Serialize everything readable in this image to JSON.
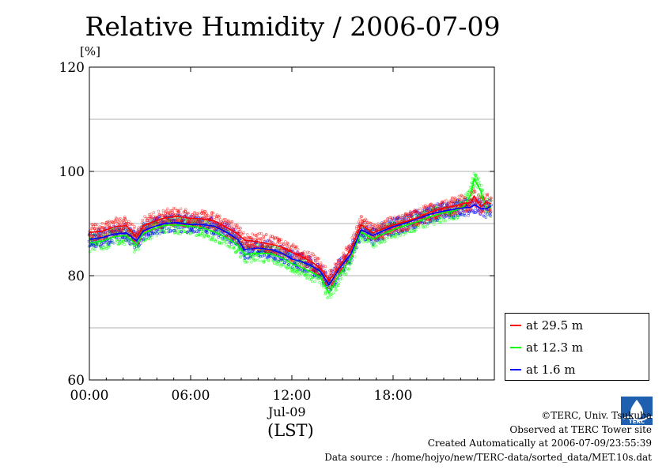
{
  "title": "Relative Humidity / 2006-07-09",
  "unit": "[%]",
  "date_label": "Jul-09",
  "tz_label": "(LST)",
  "legend": [
    {
      "label": "at 29.5 m",
      "color": "#ff0000"
    },
    {
      "label": "at 12.3 m",
      "color": "#00ff00"
    },
    {
      "label": "at 1.6 m",
      "color": "#0000ff"
    }
  ],
  "credits": [
    "©TERC, Univ. Tsukuba",
    "Observed at TERC Tower site",
    "Created Automatically at 2006-07-09/23:55:39",
    "Data source : /home/hojyo/new/TERC-data/sorted_data/MET.10s.dat"
  ],
  "logo_text": "TERC",
  "colors": {
    "red": "#ff0000",
    "green": "#00ff00",
    "blue": "#0000ff",
    "grid": "#b0b0b0"
  },
  "chart_data": {
    "type": "line",
    "title": "Relative Humidity / 2006-07-09",
    "xlabel": "(LST)",
    "ylabel": "[%]",
    "xlim": [
      0,
      24
    ],
    "ylim": [
      60,
      120
    ],
    "x_ticks": [
      {
        "x": 0,
        "label": "00:00"
      },
      {
        "x": 6,
        "label": "06:00"
      },
      {
        "x": 12,
        "label": "12:00"
      },
      {
        "x": 18,
        "label": "18:00"
      }
    ],
    "y_ticks": [
      {
        "y": 60,
        "label": "60"
      },
      {
        "y": 80,
        "label": "80"
      },
      {
        "y": 100,
        "label": "100"
      },
      {
        "y": 120,
        "label": "120"
      }
    ],
    "gridlines_y": [
      70,
      80,
      90,
      100,
      110
    ],
    "grid": true,
    "legend_position": "right-bottom",
    "series": [
      {
        "name": "at 29.5 m",
        "color": "#ff0000",
        "x": [
          0,
          0.75,
          1.5,
          2.2,
          2.8,
          3.2,
          3.8,
          4.5,
          5.2,
          6,
          6.7,
          7.4,
          8.1,
          8.8,
          9.2,
          10,
          10.8,
          11.5,
          12,
          12.5,
          13.2,
          13.7,
          14.2,
          14.8,
          15.5,
          16.1,
          16.8,
          17.4,
          18,
          18.8,
          19.5,
          20.2,
          21,
          21.7,
          22.2,
          22.6,
          22.8,
          23.2,
          23.5,
          23.8
        ],
        "y": [
          88.3,
          88.5,
          89.4,
          89.6,
          87.3,
          89.6,
          90.4,
          91.1,
          91.4,
          91.0,
          90.9,
          90.5,
          89.3,
          88.0,
          86.8,
          86.5,
          86.0,
          85.4,
          84.5,
          83.8,
          82.6,
          81.4,
          79.0,
          81.7,
          85.1,
          89.8,
          88.2,
          89.0,
          89.7,
          90.4,
          91.2,
          92.2,
          93.0,
          93.4,
          93.9,
          94.0,
          95.3,
          93.2,
          94.1,
          93.8
        ]
      },
      {
        "name": "at 12.3 m",
        "color": "#00ff00",
        "x": [
          0,
          0.75,
          1.5,
          2.2,
          2.8,
          3.2,
          3.8,
          4.5,
          5.2,
          6,
          6.7,
          7.4,
          8.1,
          8.8,
          9.2,
          10,
          10.8,
          11.5,
          12,
          12.5,
          13.2,
          13.7,
          14.2,
          14.8,
          15.5,
          16.1,
          16.8,
          17.4,
          18,
          18.8,
          19.5,
          20.2,
          21,
          21.7,
          22.2,
          22.6,
          22.8,
          23.2,
          23.5,
          23.8
        ],
        "y": [
          86.3,
          86.6,
          87.5,
          87.7,
          85.9,
          88.1,
          89.0,
          89.7,
          89.7,
          89.5,
          89.2,
          88.4,
          87.3,
          85.9,
          84.1,
          84.3,
          84.2,
          83.3,
          82.3,
          81.7,
          80.6,
          79.7,
          76.6,
          80.1,
          83.3,
          88.4,
          87.0,
          88.0,
          88.8,
          89.7,
          90.4,
          91.3,
          92.1,
          92.5,
          93.3,
          95.5,
          98.6,
          96.2,
          93.0,
          93.0
        ]
      },
      {
        "name": "at 1.6 m",
        "color": "#0000ff",
        "x": [
          0,
          0.75,
          1.5,
          2.2,
          2.8,
          3.2,
          3.8,
          4.5,
          5.2,
          6,
          6.7,
          7.4,
          8.1,
          8.8,
          9.2,
          10,
          10.8,
          11.5,
          12,
          12.5,
          13.2,
          13.7,
          14.2,
          14.8,
          15.5,
          16.1,
          16.8,
          17.4,
          18,
          18.8,
          19.5,
          20.2,
          21,
          21.7,
          22.2,
          22.6,
          22.8,
          23.2,
          23.5,
          23.8
        ],
        "y": [
          87.0,
          87.3,
          88.0,
          88.2,
          86.7,
          88.6,
          89.4,
          90.0,
          90.2,
          89.8,
          89.8,
          89.5,
          88.4,
          86.9,
          85.0,
          85.3,
          85.0,
          84.2,
          83.2,
          82.8,
          81.8,
          80.8,
          78.2,
          81.3,
          84.2,
          88.8,
          87.7,
          88.6,
          89.4,
          90.2,
          91.0,
          91.8,
          92.4,
          92.8,
          93.0,
          93.1,
          93.6,
          92.9,
          92.8,
          93.3
        ]
      }
    ]
  }
}
